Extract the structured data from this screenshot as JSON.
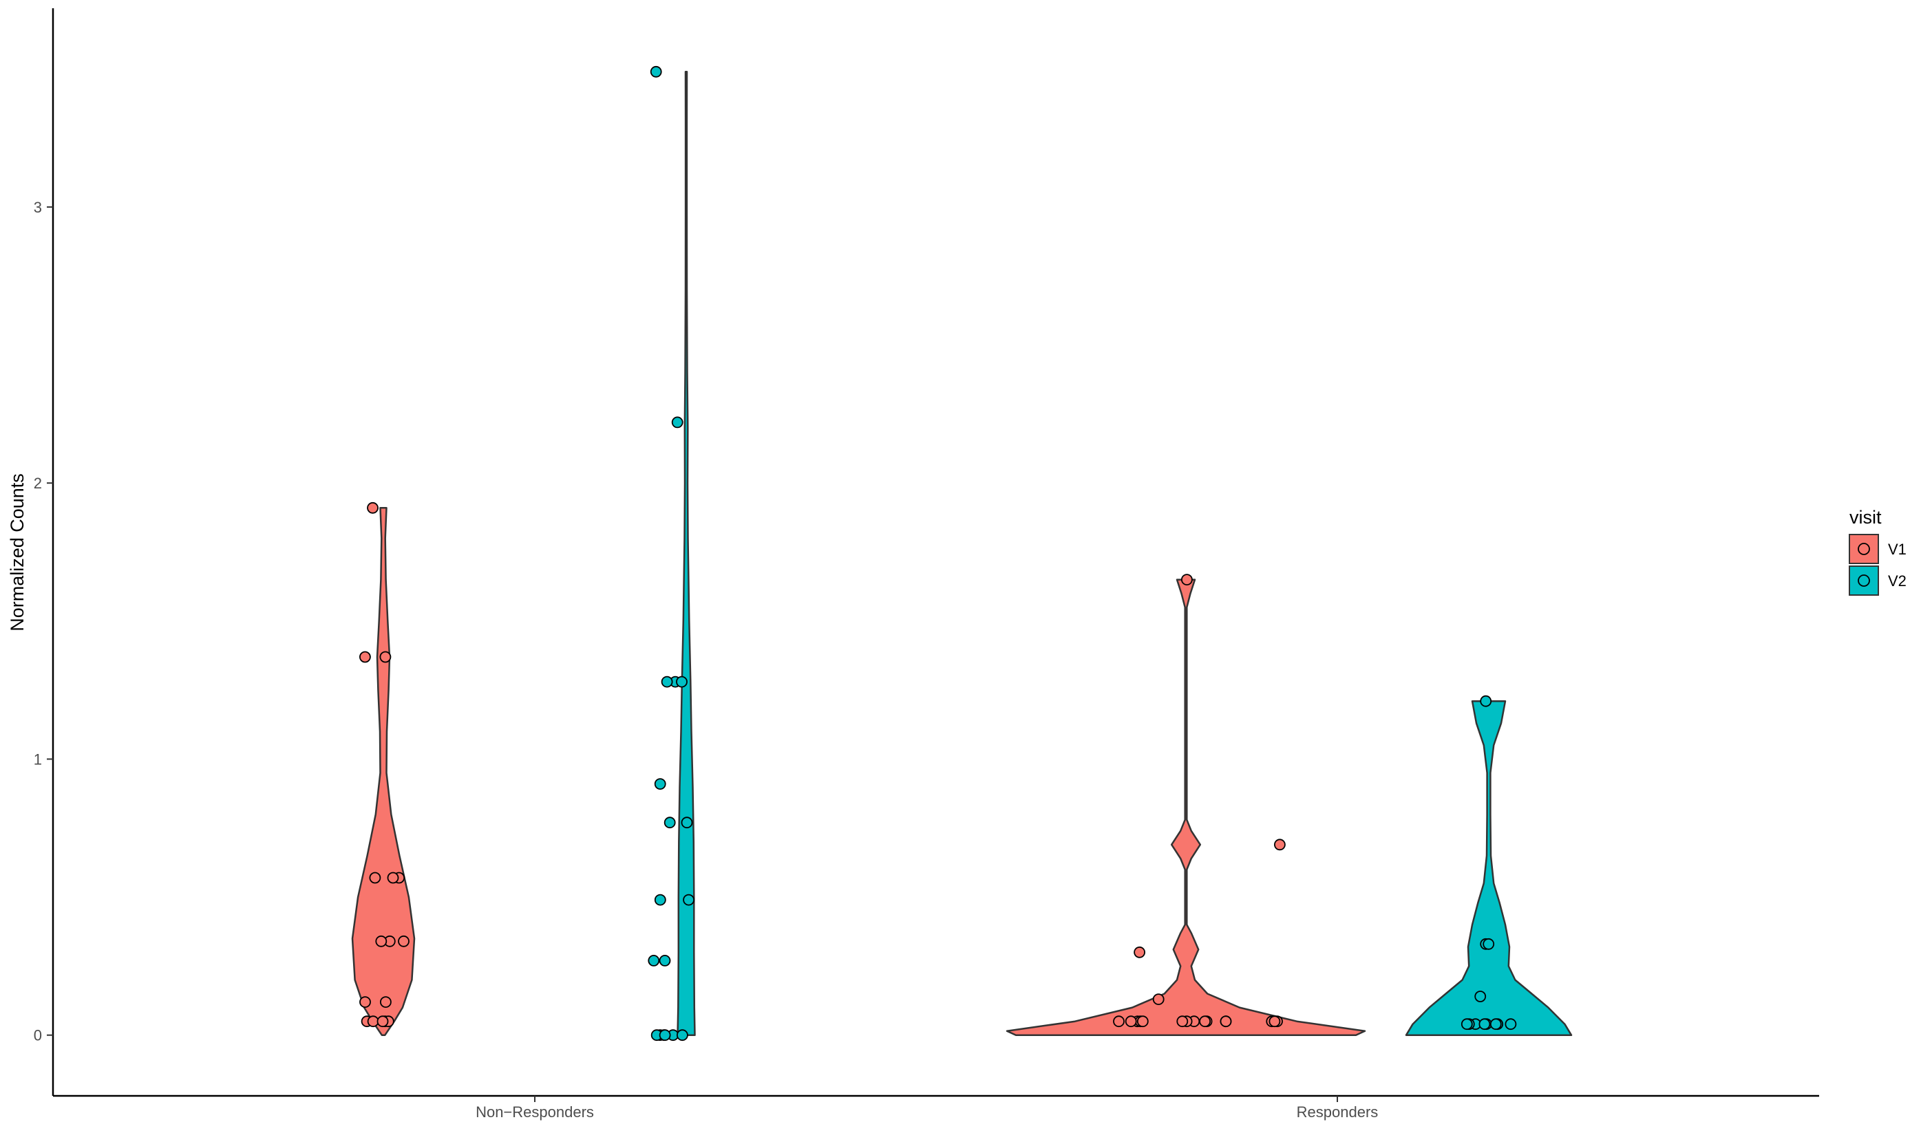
{
  "chart_data": {
    "type": "violin",
    "title": "",
    "xlabel": "",
    "ylabel": "Normalized Counts",
    "ylim": [
      -0.22,
      3.72
    ],
    "yticks": [
      0,
      1,
      2,
      3
    ],
    "ytick_labels": [
      "0",
      "1",
      "2",
      "3"
    ],
    "categories": [
      "Non−Responders",
      "Responders"
    ],
    "grid": false,
    "legend": {
      "title": "visit",
      "placement": "right",
      "entries": [
        {
          "name": "V1",
          "color": "#F8766D"
        },
        {
          "name": "V2",
          "color": "#00BFC4"
        }
      ]
    },
    "series": [
      {
        "name": "V1",
        "color": "#F8766D",
        "groups": [
          {
            "category": "Non−Responders",
            "violin_range": [
              0,
              1.91
            ],
            "density": [
              [
                0,
                0.05
              ],
              [
                0.05,
                0.35
              ],
              [
                0.1,
                0.62
              ],
              [
                0.2,
                0.92
              ],
              [
                0.35,
                1.0
              ],
              [
                0.5,
                0.82
              ],
              [
                0.65,
                0.52
              ],
              [
                0.8,
                0.25
              ],
              [
                0.95,
                0.1
              ],
              [
                1.1,
                0.11
              ],
              [
                1.25,
                0.17
              ],
              [
                1.37,
                0.2
              ],
              [
                1.5,
                0.14
              ],
              [
                1.65,
                0.08
              ],
              [
                1.8,
                0.06
              ],
              [
                1.91,
                0.1
              ]
            ],
            "points": [
              0.05,
              0.05,
              0.05,
              0.05,
              0.05,
              0.12,
              0.12,
              0.34,
              0.34,
              0.34,
              0.57,
              0.57,
              0.57,
              1.37,
              1.37,
              1.91
            ]
          },
          {
            "category": "Responders",
            "violin_range": [
              0,
              1.65
            ],
            "density": [
              [
                0,
                0.95
              ],
              [
                0.015,
                1.0
              ],
              [
                0.05,
                0.62
              ],
              [
                0.1,
                0.3
              ],
              [
                0.15,
                0.12
              ],
              [
                0.2,
                0.05
              ],
              [
                0.25,
                0.03
              ],
              [
                0.31,
                0.07
              ],
              [
                0.37,
                0.03
              ],
              [
                0.4,
                0.005
              ],
              [
                0.6,
                0.005
              ],
              [
                0.64,
                0.03
              ],
              [
                0.69,
                0.08
              ],
              [
                0.74,
                0.03
              ],
              [
                0.78,
                0.005
              ],
              [
                1.55,
                0.005
              ],
              [
                1.6,
                0.025
              ],
              [
                1.65,
                0.05
              ]
            ],
            "points": [
              0.05,
              0.05,
              0.05,
              0.05,
              0.05,
              0.05,
              0.05,
              0.05,
              0.05,
              0.05,
              0.05,
              0.05,
              0.05,
              0.05,
              0.05,
              0.13,
              0.3,
              0.69,
              1.65
            ]
          }
        ]
      },
      {
        "name": "V2",
        "color": "#00BFC4",
        "groups": [
          {
            "category": "Non−Responders",
            "violin_range": [
              0,
              3.49
            ],
            "density": [
              [
                0,
                0.5
              ],
              [
                0.1,
                0.47
              ],
              [
                0.3,
                0.45
              ],
              [
                0.5,
                0.45
              ],
              [
                0.7,
                0.43
              ],
              [
                0.9,
                0.38
              ],
              [
                1.1,
                0.3
              ],
              [
                1.28,
                0.25
              ],
              [
                1.5,
                0.17
              ],
              [
                1.8,
                0.1
              ],
              [
                2.0,
                0.08
              ],
              [
                2.2,
                0.09
              ],
              [
                2.4,
                0.06
              ],
              [
                2.7,
                0.04
              ],
              [
                3.0,
                0.035
              ],
              [
                3.3,
                0.035
              ],
              [
                3.49,
                0.04
              ]
            ],
            "points": [
              0,
              0,
              0,
              0,
              0,
              0,
              0.27,
              0.27,
              0.49,
              0.49,
              0.77,
              0.77,
              0.91,
              1.28,
              1.28,
              1.28,
              2.22,
              3.49
            ]
          },
          {
            "category": "Responders",
            "violin_range": [
              0,
              1.21
            ],
            "density": [
              [
                0,
                1.0
              ],
              [
                0.04,
                0.92
              ],
              [
                0.1,
                0.72
              ],
              [
                0.15,
                0.52
              ],
              [
                0.2,
                0.32
              ],
              [
                0.25,
                0.24
              ],
              [
                0.32,
                0.25
              ],
              [
                0.4,
                0.2
              ],
              [
                0.48,
                0.13
              ],
              [
                0.55,
                0.06
              ],
              [
                0.65,
                0.025
              ],
              [
                0.8,
                0.02
              ],
              [
                0.95,
                0.02
              ],
              [
                1.05,
                0.06
              ],
              [
                1.13,
                0.15
              ],
              [
                1.21,
                0.2
              ]
            ],
            "points": [
              0.04,
              0.04,
              0.04,
              0.04,
              0.04,
              0.04,
              0.04,
              0.04,
              0.14,
              0.33,
              0.33,
              1.21
            ]
          }
        ]
      }
    ]
  }
}
